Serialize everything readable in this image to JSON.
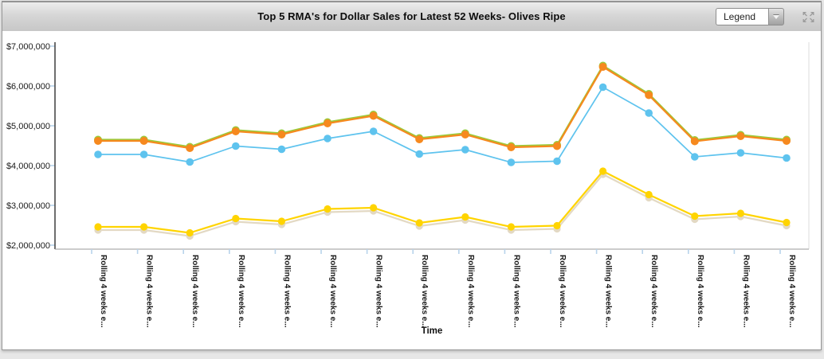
{
  "header": {
    "title": "Top 5 RMA's for Dollar Sales for Latest 52 Weeks- Olives Ripe",
    "legend_label": "Legend",
    "icons": {
      "dropdown": "chevron-down-icon",
      "window_control": "expand-arrows-icon"
    }
  },
  "chart_data": {
    "type": "line",
    "title": "Top 5 RMA's for Dollar Sales for Latest 52 Weeks- Olives Ripe",
    "xlabel": "Time",
    "ylabel": "",
    "ylim": [
      2000000,
      7000000
    ],
    "grid": false,
    "legend_position": "collapsed-dropdown",
    "series_names_visible": false,
    "y_ticks": [
      {
        "value": 7000000,
        "label": "$7,000,000"
      },
      {
        "value": 6000000,
        "label": "$6,000,000"
      },
      {
        "value": 5000000,
        "label": "$5,000,000"
      },
      {
        "value": 4000000,
        "label": "$4,000,000"
      },
      {
        "value": 3000000,
        "label": "$3,000,000"
      },
      {
        "value": 2000000,
        "label": "$2,000,000"
      }
    ],
    "categories": [
      "Rolling 4 weeks e...",
      "Rolling 4 weeks e...",
      "Rolling 4 weeks e...",
      "Rolling 4 weeks e...",
      "Rolling 4 weeks e...",
      "Rolling 4 weeks e...",
      "Rolling 4 weeks e...",
      "Rolling 4 weeks e...",
      "Rolling 4 weeks e...",
      "Rolling 4 weeks e...",
      "Rolling 4 weeks e...",
      "Rolling 4 weeks e...",
      "Rolling 4 weeks e...",
      "Rolling 4 weeks e...",
      "Rolling 4 weeks e...",
      "Rolling 4 weeks e..."
    ],
    "series": [
      {
        "name": "green",
        "color": "#9ACB3B",
        "marker": "circle",
        "line_width": 2.2,
        "marker_radius": 5,
        "values": [
          4650000,
          4650000,
          4470000,
          4890000,
          4810000,
          5090000,
          5280000,
          4690000,
          4810000,
          4490000,
          4520000,
          6510000,
          5800000,
          4640000,
          4770000,
          4650000
        ]
      },
      {
        "name": "tan",
        "color": "#E3D9C3",
        "marker": "circle",
        "line_width": 2.2,
        "marker_radius": 4.6,
        "values": [
          2380000,
          2380000,
          2230000,
          2590000,
          2520000,
          2830000,
          2860000,
          2480000,
          2630000,
          2380000,
          2410000,
          3780000,
          3190000,
          2650000,
          2720000,
          2490000
        ]
      },
      {
        "name": "cyan",
        "color": "#5EC3EE",
        "marker": "circle",
        "line_width": 1.7,
        "marker_radius": 4.8,
        "values": [
          4280000,
          4280000,
          4090000,
          4490000,
          4410000,
          4680000,
          4860000,
          4290000,
          4400000,
          4080000,
          4110000,
          5970000,
          5320000,
          4220000,
          4320000,
          4190000
        ]
      },
      {
        "name": "yellow",
        "color": "#FFD400",
        "marker": "circle",
        "line_width": 2.2,
        "marker_radius": 4.6,
        "values": [
          2460000,
          2460000,
          2310000,
          2670000,
          2600000,
          2910000,
          2940000,
          2560000,
          2710000,
          2460000,
          2490000,
          3860000,
          3270000,
          2730000,
          2800000,
          2570000
        ]
      },
      {
        "name": "orange",
        "color": "#F6891E",
        "marker": "circle",
        "line_width": 2.2,
        "marker_radius": 5,
        "values": [
          4620000,
          4620000,
          4440000,
          4860000,
          4780000,
          5060000,
          5250000,
          4660000,
          4780000,
          4460000,
          4490000,
          6480000,
          5770000,
          4610000,
          4740000,
          4620000
        ]
      }
    ],
    "axis_colors": {
      "y_axis_line": "#3f3f3f",
      "x_axis_line": "#9a9a9a",
      "tick_mark": "#b8d3eb",
      "label_text": "#1a1a1a",
      "plot_right_border": "#dedede"
    }
  }
}
